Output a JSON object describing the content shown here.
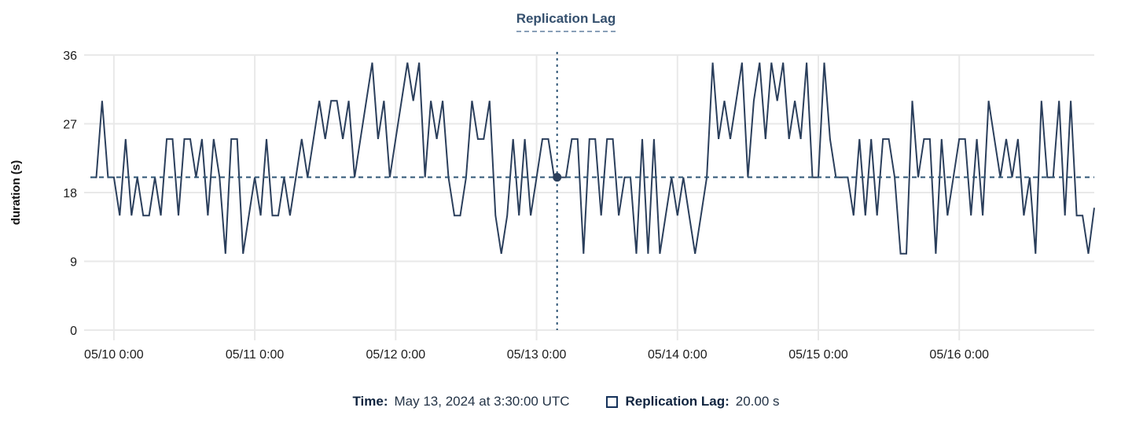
{
  "chart_data": {
    "type": "line",
    "title": "Replication Lag",
    "ylabel": "duration (s)",
    "ylim": [
      0,
      36
    ],
    "yticks": [
      0,
      9,
      18,
      27,
      36
    ],
    "xticks": [
      {
        "hour": 0,
        "label": "05/10 0:00"
      },
      {
        "hour": 24,
        "label": "05/11 0:00"
      },
      {
        "hour": 48,
        "label": "05/12 0:00"
      },
      {
        "hour": 72,
        "label": "05/13 0:00"
      },
      {
        "hour": 96,
        "label": "05/14 0:00"
      },
      {
        "hour": 120,
        "label": "05/15 0:00"
      },
      {
        "hour": 144,
        "label": "05/16 0:00"
      }
    ],
    "grid": true,
    "legend_position": "bottom",
    "hour_min": -4,
    "hour_max": 167,
    "series": [
      {
        "name": "Replication Lag",
        "color": "#2b3f5c",
        "values": [
          20,
          20,
          30,
          20,
          20,
          15,
          25,
          15,
          20,
          15,
          15,
          20,
          15,
          25,
          25,
          15,
          25,
          25,
          20,
          25,
          15,
          25,
          20,
          10,
          25,
          25,
          10,
          15,
          20,
          15,
          25,
          15,
          15,
          20,
          15,
          20,
          25,
          20,
          25,
          30,
          25,
          30,
          30,
          25,
          30,
          20,
          25,
          30,
          35,
          25,
          30,
          20,
          25,
          30,
          35,
          30,
          35,
          20,
          30,
          25,
          30,
          20,
          15,
          15,
          20,
          30,
          25,
          25,
          30,
          15,
          10,
          15,
          25,
          15,
          25,
          15,
          20,
          25,
          25,
          20,
          20,
          20,
          25,
          25,
          10,
          25,
          25,
          15,
          25,
          25,
          15,
          20,
          20,
          10,
          25,
          10,
          25,
          10,
          15,
          20,
          15,
          20,
          15,
          10,
          15,
          20,
          35,
          25,
          30,
          25,
          30,
          35,
          20,
          30,
          35,
          25,
          35,
          30,
          35,
          25,
          30,
          25,
          35,
          20,
          20,
          35,
          25,
          20,
          20,
          20,
          15,
          25,
          15,
          25,
          15,
          25,
          25,
          20,
          10,
          10,
          30,
          20,
          25,
          25,
          10,
          25,
          15,
          20,
          25,
          25,
          15,
          25,
          15,
          30,
          25,
          20,
          25,
          20,
          25,
          15,
          20,
          10,
          30,
          20,
          20,
          30,
          15,
          30,
          15,
          15,
          10,
          16
        ]
      }
    ],
    "crosshair": {
      "hour": 75.5,
      "value": 20,
      "time_label": "May 13, 2024 at 3:30:00 UTC",
      "value_label": "20.00 s",
      "line_color": "#2f5575"
    },
    "colors": {
      "grid": "#e9e9e9",
      "tick_text": "#1c1c1c",
      "axis_title_text": "#111111",
      "title_text": "#35506e",
      "title_underline": "#8aa0b8"
    }
  },
  "legend": {
    "time_label": "Time:",
    "time_value": "May 13, 2024 at 3:30:00 UTC",
    "series_label": "Replication Lag:",
    "series_value": "20.00 s",
    "swatch_icon": "square-outline-icon"
  }
}
